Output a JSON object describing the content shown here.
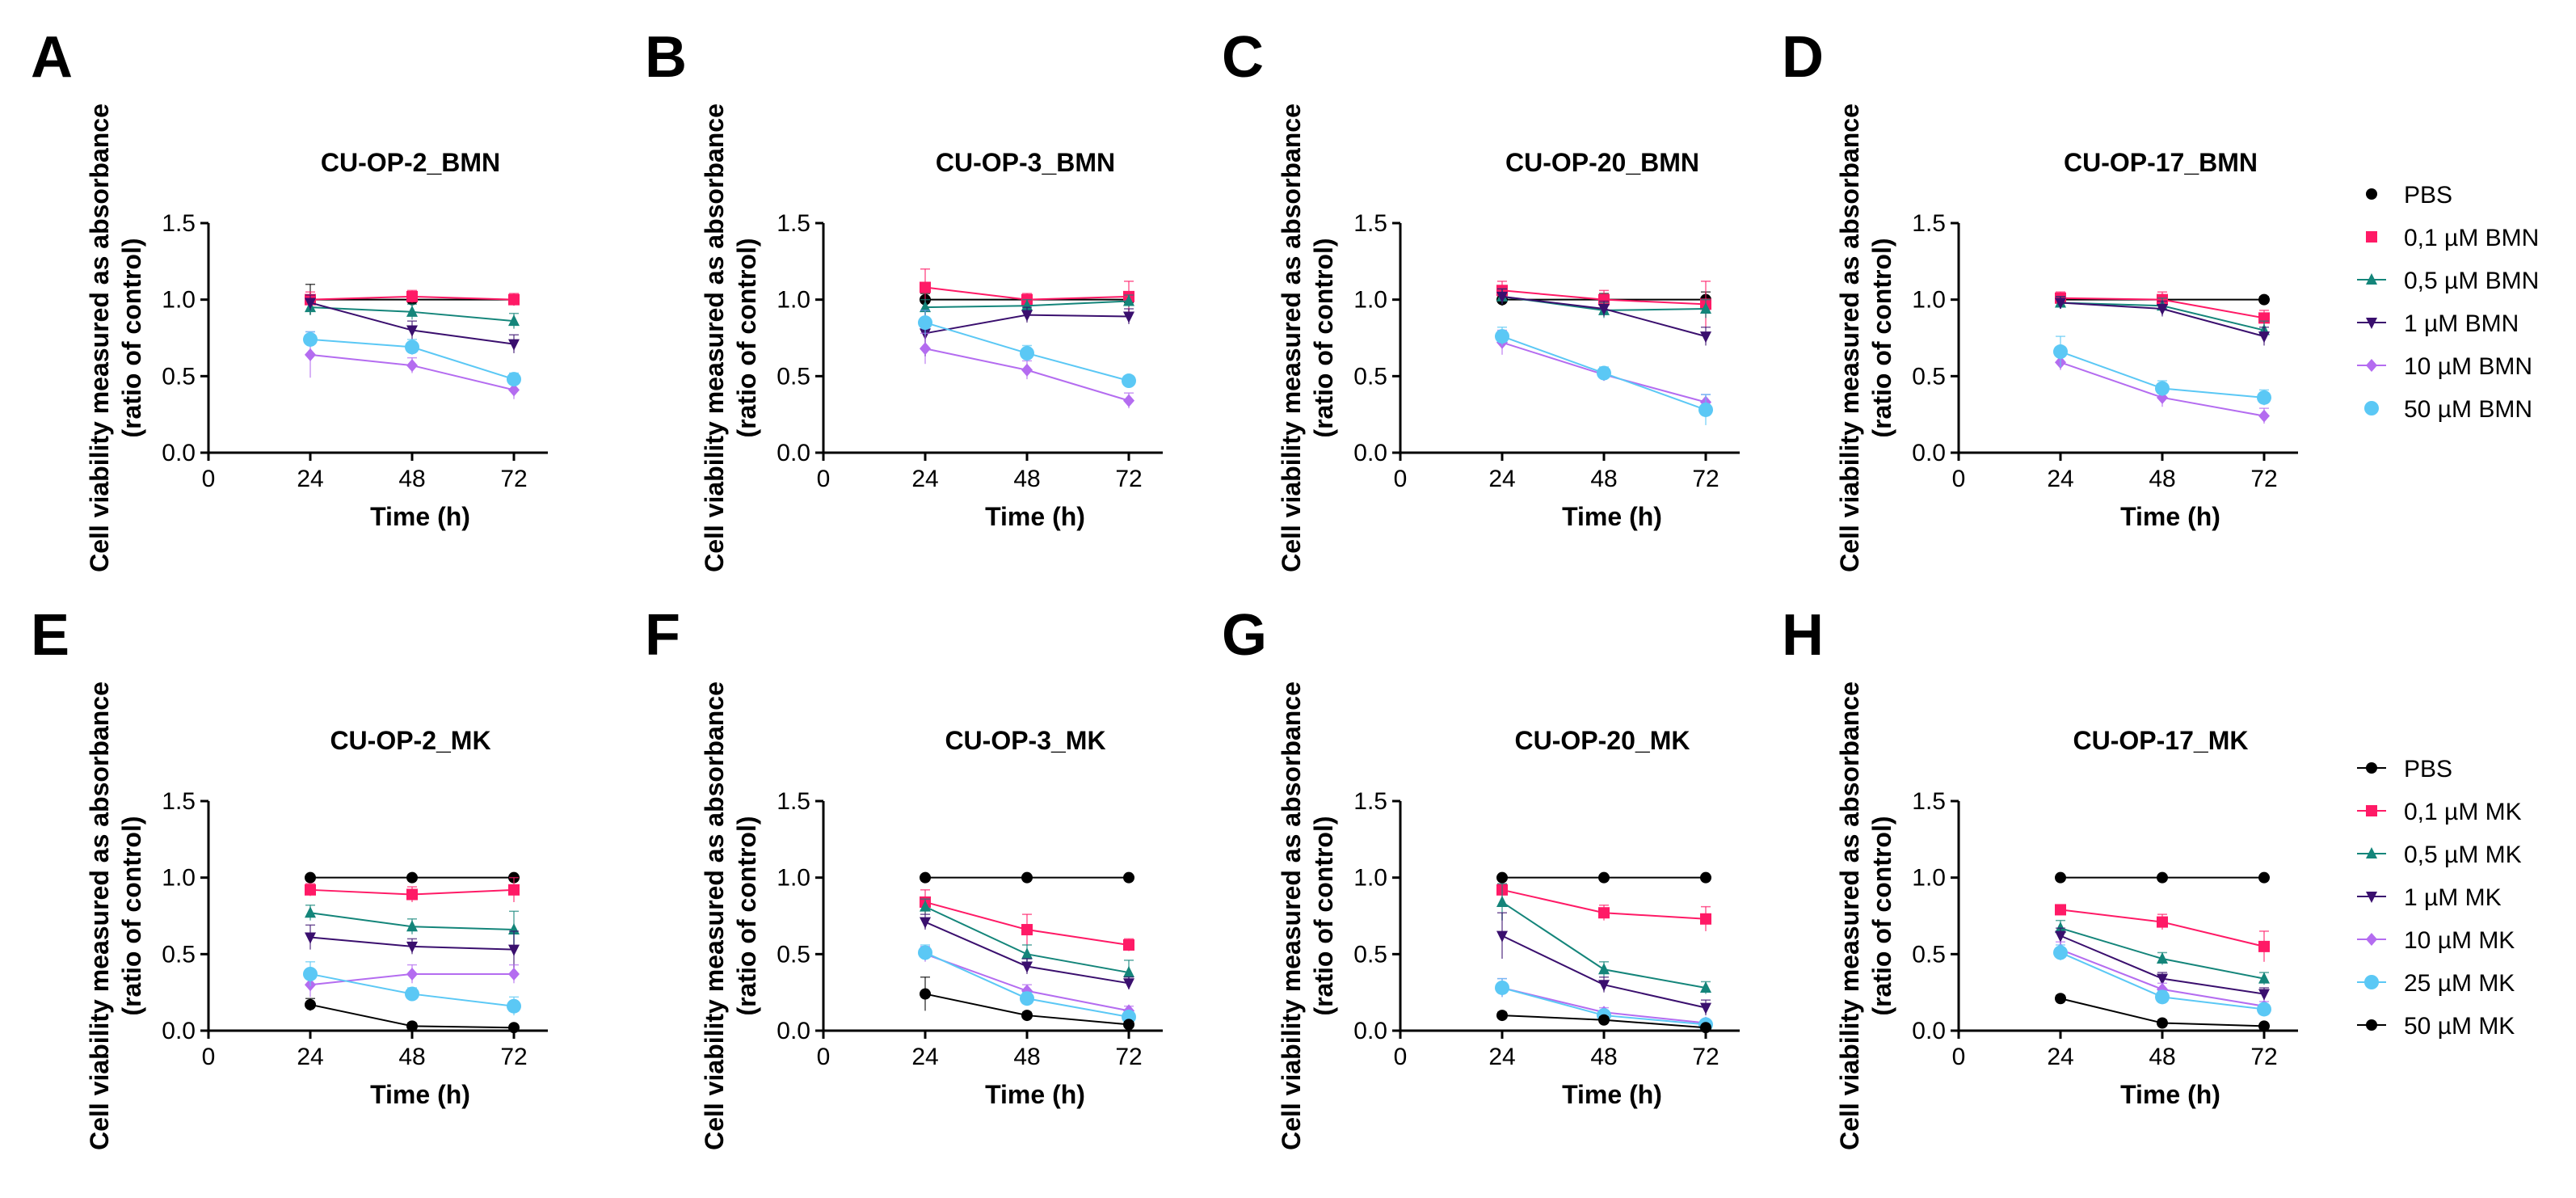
{
  "figure": {
    "colors": {
      "PBS": "#000000",
      "c01": "#ff1a66",
      "c05": "#14857a",
      "c1": "#3a0f6e",
      "c10": "#b46cf0",
      "c25": "#5bc8f5",
      "c50": "#5bc8f5",
      "c50mk": "#000000"
    },
    "legends": [
      {
        "row": 0,
        "entries": [
          {
            "label": "PBS",
            "color": "#000000",
            "marker": "circle",
            "line": false
          },
          {
            "label": "0,1 µM BMN",
            "color": "#ff1a66",
            "marker": "square",
            "line": false
          },
          {
            "label": "0,5 µM BMN",
            "color": "#14857a",
            "marker": "triangle-up",
            "line": true
          },
          {
            "label": "1 µM BMN",
            "color": "#3a0f6e",
            "marker": "triangle-down",
            "line": true
          },
          {
            "label": "10 µM BMN",
            "color": "#b46cf0",
            "marker": "diamond",
            "line": true
          },
          {
            "label": "50 µM BMN",
            "color": "#5bc8f5",
            "marker": "circle-large",
            "line": false
          }
        ]
      },
      {
        "row": 1,
        "entries": [
          {
            "label": "PBS",
            "color": "#000000",
            "marker": "circle",
            "line": true
          },
          {
            "label": "0,1 µM MK",
            "color": "#ff1a66",
            "marker": "square",
            "line": true
          },
          {
            "label": "0,5 µM MK",
            "color": "#14857a",
            "marker": "triangle-up",
            "line": true
          },
          {
            "label": "1 µM MK",
            "color": "#3a0f6e",
            "marker": "triangle-down",
            "line": true
          },
          {
            "label": "10 µM MK",
            "color": "#b46cf0",
            "marker": "diamond",
            "line": true
          },
          {
            "label": "25 µM MK",
            "color": "#5bc8f5",
            "marker": "circle-large",
            "line": true
          },
          {
            "label": "50 µM MK",
            "color": "#000000",
            "marker": "circle",
            "line": true
          }
        ]
      }
    ]
  },
  "chart_data": [
    {
      "panel": "A",
      "type": "line",
      "title": "CU-OP-2_BMN",
      "xlabel": "Time (h)",
      "ylabel": "Cell viability measured as absorbance",
      "ylabel2": "(ratio of control)",
      "xlim": [
        0,
        80
      ],
      "ylim": [
        0,
        1.5
      ],
      "xticks": [
        0,
        24,
        48,
        72
      ],
      "yticks": [
        0.0,
        0.5,
        1.0,
        1.5
      ],
      "x": [
        24,
        48,
        72
      ],
      "series": [
        {
          "name": "PBS",
          "values": [
            1.0,
            1.0,
            1.0
          ],
          "err": [
            0.1,
            0.03,
            0.03
          ]
        },
        {
          "name": "0,1 µM BMN",
          "values": [
            1.0,
            1.02,
            1.0
          ],
          "err": [
            0.05,
            0.04,
            0.04
          ]
        },
        {
          "name": "0,5 µM BMN",
          "values": [
            0.95,
            0.92,
            0.86
          ],
          "err": [
            0.05,
            0.05,
            0.05
          ]
        },
        {
          "name": "1 µM BMN",
          "values": [
            0.98,
            0.8,
            0.71
          ],
          "err": [
            0.05,
            0.06,
            0.06
          ]
        },
        {
          "name": "10 µM BMN",
          "values": [
            0.64,
            0.57,
            0.41
          ],
          "err": [
            0.15,
            0.05,
            0.06
          ]
        },
        {
          "name": "50 µM BMN",
          "values": [
            0.74,
            0.69,
            0.48
          ],
          "err": [
            0.05,
            0.05,
            0.04
          ]
        }
      ]
    },
    {
      "panel": "B",
      "type": "line",
      "title": "CU-OP-3_BMN",
      "xlabel": "Time (h)",
      "ylabel": "Cell viability measured as absorbance",
      "ylabel2": "(ratio of control)",
      "xlim": [
        0,
        80
      ],
      "ylim": [
        0,
        1.5
      ],
      "xticks": [
        0,
        24,
        48,
        72
      ],
      "yticks": [
        0.0,
        0.5,
        1.0,
        1.5
      ],
      "x": [
        24,
        48,
        72
      ],
      "series": [
        {
          "name": "PBS",
          "values": [
            1.0,
            1.0,
            1.0
          ],
          "err": [
            0.04,
            0.03,
            0.03
          ]
        },
        {
          "name": "0,1 µM BMN",
          "values": [
            1.08,
            1.0,
            1.02
          ],
          "err": [
            0.12,
            0.04,
            0.1
          ]
        },
        {
          "name": "0,5 µM BMN",
          "values": [
            0.95,
            0.96,
            0.99
          ],
          "err": [
            0.05,
            0.04,
            0.04
          ]
        },
        {
          "name": "1 µM BMN",
          "values": [
            0.78,
            0.9,
            0.89
          ],
          "err": [
            0.15,
            0.05,
            0.05
          ]
        },
        {
          "name": "10 µM BMN",
          "values": [
            0.68,
            0.54,
            0.34
          ],
          "err": [
            0.1,
            0.06,
            0.05
          ]
        },
        {
          "name": "50 µM BMN",
          "values": [
            0.85,
            0.65,
            0.47
          ],
          "err": [
            0.08,
            0.05,
            0.03
          ]
        }
      ]
    },
    {
      "panel": "C",
      "type": "line",
      "title": "CU-OP-20_BMN",
      "xlabel": "Time (h)",
      "ylabel": "Cell viability measured as absorbance",
      "ylabel2": "(ratio of control)",
      "xlim": [
        0,
        80
      ],
      "ylim": [
        0,
        1.5
      ],
      "xticks": [
        0,
        24,
        48,
        72
      ],
      "yticks": [
        0.0,
        0.5,
        1.0,
        1.5
      ],
      "x": [
        24,
        48,
        72
      ],
      "series": [
        {
          "name": "PBS",
          "values": [
            1.0,
            1.0,
            1.0
          ],
          "err": [
            0.04,
            0.04,
            0.05
          ]
        },
        {
          "name": "0,1 µM BMN",
          "values": [
            1.06,
            1.0,
            0.97
          ],
          "err": [
            0.06,
            0.06,
            0.15
          ]
        },
        {
          "name": "0,5 µM BMN",
          "values": [
            1.02,
            0.93,
            0.94
          ],
          "err": [
            0.05,
            0.05,
            0.06
          ]
        },
        {
          "name": "1 µM BMN",
          "values": [
            1.02,
            0.94,
            0.76
          ],
          "err": [
            0.05,
            0.05,
            0.06
          ]
        },
        {
          "name": "10 µM BMN",
          "values": [
            0.72,
            0.51,
            0.33
          ],
          "err": [
            0.08,
            0.04,
            0.05
          ]
        },
        {
          "name": "50 µM BMN",
          "values": [
            0.76,
            0.52,
            0.28
          ],
          "err": [
            0.06,
            0.04,
            0.1
          ]
        }
      ]
    },
    {
      "panel": "D",
      "type": "line",
      "title": "CU-OP-17_BMN",
      "xlabel": "Time (h)",
      "ylabel": "Cell viability measured as absorbance",
      "ylabel2": "(ratio of control)",
      "xlim": [
        0,
        80
      ],
      "ylim": [
        0,
        1.5
      ],
      "xticks": [
        0,
        24,
        48,
        72
      ],
      "yticks": [
        0.0,
        0.5,
        1.0,
        1.5
      ],
      "x": [
        24,
        48,
        72
      ],
      "series": [
        {
          "name": "PBS",
          "values": [
            1.0,
            1.0,
            1.0
          ],
          "err": [
            0.03,
            0.03,
            0.02
          ]
        },
        {
          "name": "0,1 µM BMN",
          "values": [
            1.01,
            1.0,
            0.88
          ],
          "err": [
            0.04,
            0.05,
            0.05
          ]
        },
        {
          "name": "0,5 µM BMN",
          "values": [
            0.98,
            0.96,
            0.8
          ],
          "err": [
            0.04,
            0.05,
            0.06
          ]
        },
        {
          "name": "1 µM BMN",
          "values": [
            0.98,
            0.94,
            0.76
          ],
          "err": [
            0.04,
            0.05,
            0.06
          ]
        },
        {
          "name": "10 µM BMN",
          "values": [
            0.59,
            0.36,
            0.24
          ],
          "err": [
            0.05,
            0.06,
            0.05
          ]
        },
        {
          "name": "50 µM BMN",
          "values": [
            0.66,
            0.42,
            0.36
          ],
          "err": [
            0.1,
            0.05,
            0.05
          ]
        }
      ]
    },
    {
      "panel": "E",
      "type": "line",
      "title": "CU-OP-2_MK",
      "xlabel": "Time (h)",
      "ylabel": "Cell viability measured as absorbance",
      "ylabel2": "(ratio of control)",
      "xlim": [
        0,
        80
      ],
      "ylim": [
        0,
        1.5
      ],
      "xticks": [
        0,
        24,
        48,
        72
      ],
      "yticks": [
        0.0,
        0.5,
        1.0,
        1.5
      ],
      "x": [
        24,
        48,
        72
      ],
      "series": [
        {
          "name": "PBS",
          "values": [
            1.0,
            1.0,
            1.0
          ],
          "err": [
            0.0,
            0.0,
            0.0
          ]
        },
        {
          "name": "0,1 µM MK",
          "values": [
            0.92,
            0.89,
            0.92
          ],
          "err": [
            0.04,
            0.05,
            0.08
          ]
        },
        {
          "name": "0,5 µM MK",
          "values": [
            0.77,
            0.68,
            0.66
          ],
          "err": [
            0.05,
            0.05,
            0.12
          ]
        },
        {
          "name": "1 µM MK",
          "values": [
            0.61,
            0.55,
            0.53
          ],
          "err": [
            0.08,
            0.05,
            0.12
          ]
        },
        {
          "name": "10 µM MK",
          "values": [
            0.3,
            0.37,
            0.37
          ],
          "err": [
            0.08,
            0.06,
            0.06
          ]
        },
        {
          "name": "25 µM MK",
          "values": [
            0.37,
            0.24,
            0.16
          ],
          "err": [
            0.08,
            0.04,
            0.06
          ]
        },
        {
          "name": "50 µM MK",
          "values": [
            0.17,
            0.03,
            0.02
          ],
          "err": [
            0.04,
            0.02,
            0.01
          ]
        }
      ]
    },
    {
      "panel": "F",
      "type": "line",
      "title": "CU-OP-3_MK",
      "xlabel": "Time (h)",
      "ylabel": "Cell viability measured as absorbance",
      "ylabel2": "(ratio of control)",
      "xlim": [
        0,
        80
      ],
      "ylim": [
        0,
        1.5
      ],
      "xticks": [
        0,
        24,
        48,
        72
      ],
      "yticks": [
        0.0,
        0.5,
        1.0,
        1.5
      ],
      "x": [
        24,
        48,
        72
      ],
      "series": [
        {
          "name": "PBS",
          "values": [
            1.0,
            1.0,
            1.0
          ],
          "err": [
            0.0,
            0.0,
            0.0
          ]
        },
        {
          "name": "0,1 µM MK",
          "values": [
            0.84,
            0.66,
            0.56
          ],
          "err": [
            0.08,
            0.1,
            0.04
          ]
        },
        {
          "name": "0,5 µM MK",
          "values": [
            0.81,
            0.5,
            0.38
          ],
          "err": [
            0.05,
            0.06,
            0.08
          ]
        },
        {
          "name": "1 µM MK",
          "values": [
            0.71,
            0.42,
            0.31
          ],
          "err": [
            0.05,
            0.05,
            0.04
          ]
        },
        {
          "name": "10 µM MK",
          "values": [
            0.5,
            0.26,
            0.13
          ],
          "err": [
            0.05,
            0.04,
            0.03
          ]
        },
        {
          "name": "25 µM MK",
          "values": [
            0.51,
            0.21,
            0.09
          ],
          "err": [
            0.05,
            0.04,
            0.03
          ]
        },
        {
          "name": "50 µM MK",
          "values": [
            0.24,
            0.1,
            0.04
          ],
          "err": [
            0.11,
            0.02,
            0.02
          ]
        }
      ]
    },
    {
      "panel": "G",
      "type": "line",
      "title": "CU-OP-20_MK",
      "xlabel": "Time (h)",
      "ylabel": "Cell viability measured as absorbance",
      "ylabel2": "(ratio of control)",
      "xlim": [
        0,
        80
      ],
      "ylim": [
        0,
        1.5
      ],
      "xticks": [
        0,
        24,
        48,
        72
      ],
      "yticks": [
        0.0,
        0.5,
        1.0,
        1.5
      ],
      "x": [
        24,
        48,
        72
      ],
      "series": [
        {
          "name": "PBS",
          "values": [
            1.0,
            1.0,
            1.0
          ],
          "err": [
            0.0,
            0.0,
            0.0
          ]
        },
        {
          "name": "0,1 µM MK",
          "values": [
            0.92,
            0.77,
            0.73
          ],
          "err": [
            0.04,
            0.05,
            0.08
          ]
        },
        {
          "name": "0,5 µM MK",
          "values": [
            0.84,
            0.4,
            0.28
          ],
          "err": [
            0.12,
            0.05,
            0.04
          ]
        },
        {
          "name": "1 µM MK",
          "values": [
            0.62,
            0.3,
            0.15
          ],
          "err": [
            0.15,
            0.05,
            0.05
          ]
        },
        {
          "name": "10 µM MK",
          "values": [
            0.28,
            0.12,
            0.05
          ],
          "err": [
            0.06,
            0.03,
            0.02
          ]
        },
        {
          "name": "25 µM MK",
          "values": [
            0.28,
            0.1,
            0.04
          ],
          "err": [
            0.06,
            0.03,
            0.02
          ]
        },
        {
          "name": "50 µM MK",
          "values": [
            0.1,
            0.07,
            0.02
          ],
          "err": [
            0.02,
            0.02,
            0.01
          ]
        }
      ]
    },
    {
      "panel": "H",
      "type": "line",
      "title": "CU-OP-17_MK",
      "xlabel": "Time (h)",
      "ylabel": "Cell viability measured as absorbance",
      "ylabel2": "(ratio of control)",
      "xlim": [
        0,
        80
      ],
      "ylim": [
        0,
        1.5
      ],
      "xticks": [
        0,
        24,
        48,
        72
      ],
      "yticks": [
        0.0,
        0.5,
        1.0,
        1.5
      ],
      "x": [
        24,
        48,
        72
      ],
      "series": [
        {
          "name": "PBS",
          "values": [
            1.0,
            1.0,
            1.0
          ],
          "err": [
            0.0,
            0.0,
            0.0
          ]
        },
        {
          "name": "0,1 µM MK",
          "values": [
            0.79,
            0.71,
            0.55
          ],
          "err": [
            0.03,
            0.05,
            0.1
          ]
        },
        {
          "name": "0,5 µM MK",
          "values": [
            0.67,
            0.47,
            0.34
          ],
          "err": [
            0.05,
            0.04,
            0.04
          ]
        },
        {
          "name": "1 µM MK",
          "values": [
            0.62,
            0.34,
            0.24
          ],
          "err": [
            0.05,
            0.04,
            0.04
          ]
        },
        {
          "name": "10 µM MK",
          "values": [
            0.53,
            0.27,
            0.16
          ],
          "err": [
            0.05,
            0.04,
            0.03
          ]
        },
        {
          "name": "25 µM MK",
          "values": [
            0.51,
            0.22,
            0.14
          ],
          "err": [
            0.05,
            0.04,
            0.03
          ]
        },
        {
          "name": "50 µM MK",
          "values": [
            0.21,
            0.05,
            0.03
          ],
          "err": [
            0.02,
            0.02,
            0.01
          ]
        }
      ]
    }
  ]
}
